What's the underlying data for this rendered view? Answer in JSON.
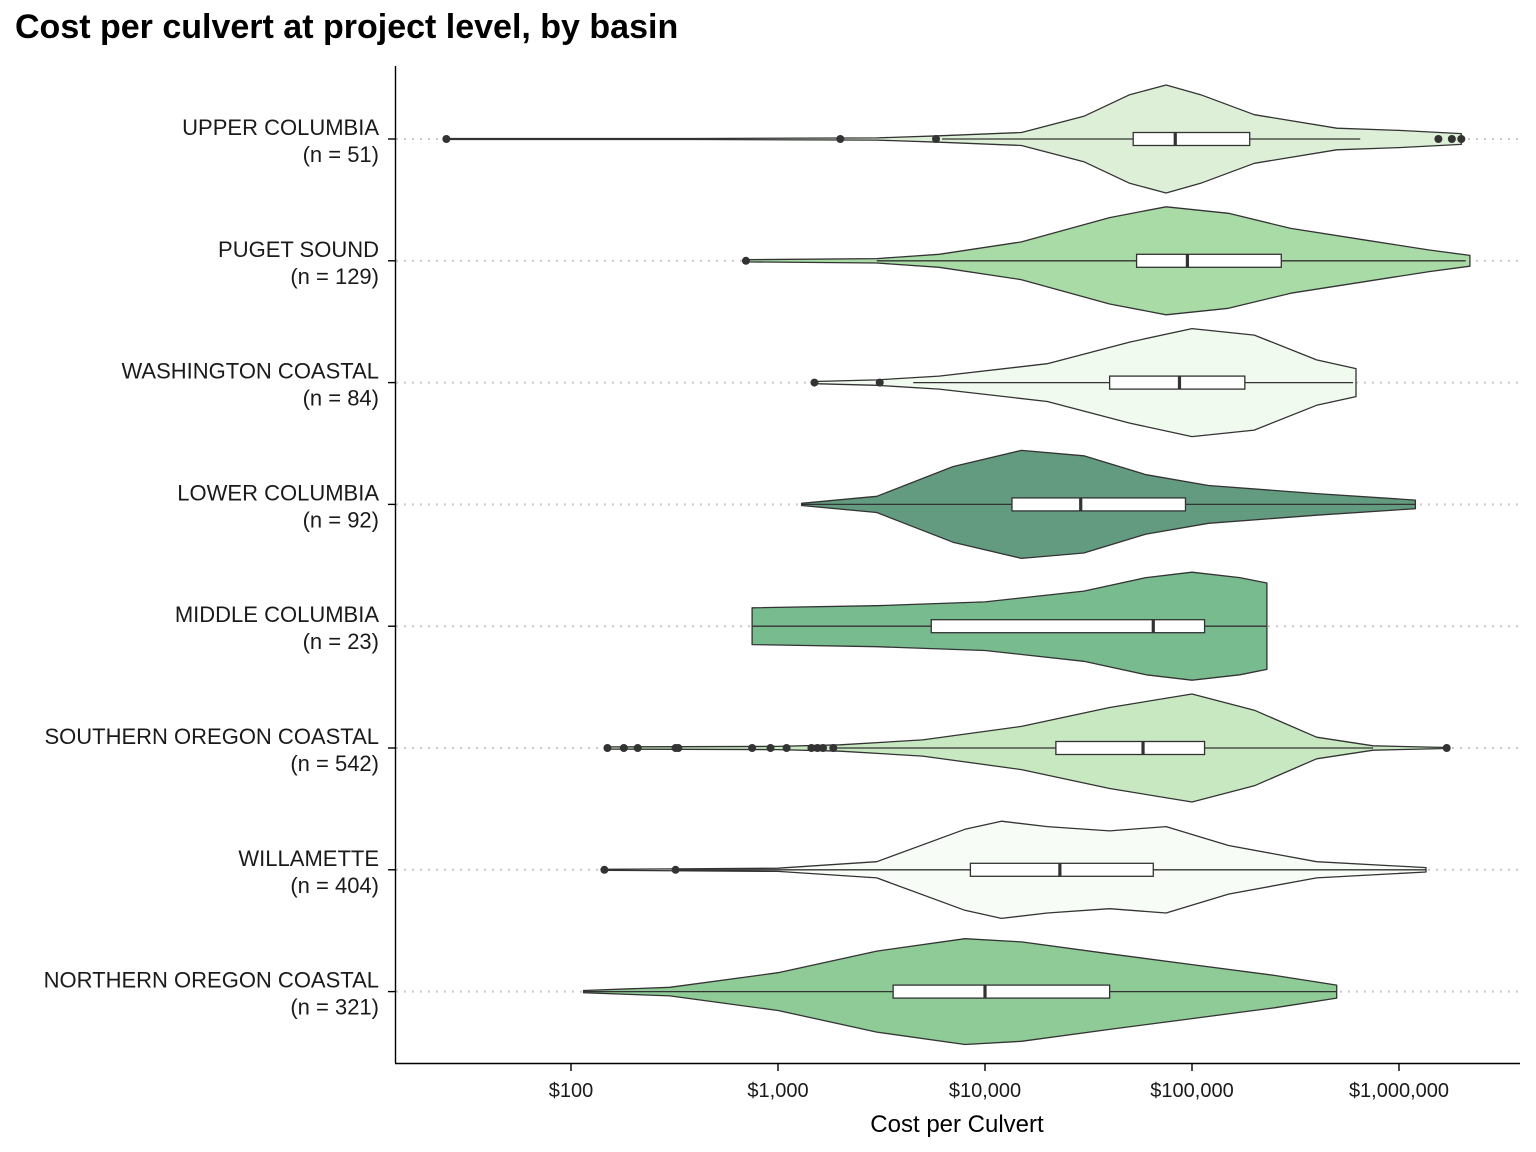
{
  "chart_data": {
    "type": "violin",
    "title": "Cost per culvert at project level, by basin",
    "xlabel": "Cost per Culvert",
    "ylabel": "",
    "x_scale": "log10",
    "xlim": [
      13,
      2800000
    ],
    "x_ticks": [
      100,
      1000,
      10000,
      100000,
      1000000
    ],
    "x_tick_labels": [
      "$100",
      "$1,000",
      "$10,000",
      "$100,000",
      "$1,000,000"
    ],
    "grid": "dotted horizontal lines at each category",
    "legend": "none",
    "series": [
      {
        "name": "UPPER COLUMBIA",
        "label": "(n = 51)",
        "color": "#ddf0d7",
        "box": {
          "q1": 52000,
          "median": 83000,
          "q3": 190000,
          "whisker_low": 6200,
          "whisker_high": 650000
        },
        "outliers": [
          25,
          2000,
          5800,
          1550000,
          1800000,
          2000000
        ],
        "density": [
          [
            25,
            0.01
          ],
          [
            400,
            0.01
          ],
          [
            3000,
            0.02
          ],
          [
            6000,
            0.06
          ],
          [
            15000,
            0.12
          ],
          [
            30000,
            0.42
          ],
          [
            50000,
            0.82
          ],
          [
            75000,
            1.0
          ],
          [
            110000,
            0.82
          ],
          [
            200000,
            0.45
          ],
          [
            500000,
            0.2
          ],
          [
            1000000,
            0.16
          ],
          [
            2000000,
            0.1
          ]
        ]
      },
      {
        "name": "PUGET SOUND",
        "label": "(n = 129)",
        "color": "#a9dba6",
        "box": {
          "q1": 54000,
          "median": 95000,
          "q3": 270000,
          "whisker_low": 3000,
          "whisker_high": 2100000
        },
        "outliers": [
          700
        ],
        "density": [
          [
            700,
            0.02
          ],
          [
            3000,
            0.04
          ],
          [
            6000,
            0.12
          ],
          [
            15000,
            0.35
          ],
          [
            40000,
            0.8
          ],
          [
            75000,
            1.0
          ],
          [
            150000,
            0.88
          ],
          [
            300000,
            0.6
          ],
          [
            700000,
            0.38
          ],
          [
            1400000,
            0.2
          ],
          [
            2200000,
            0.1
          ]
        ]
      },
      {
        "name": "WASHINGTON COASTAL",
        "label": "(n = 84)",
        "color": "#f1faee",
        "box": {
          "q1": 40000,
          "median": 87000,
          "q3": 180000,
          "whisker_low": 4500,
          "whisker_high": 600000
        },
        "outliers": [
          1500,
          3100
        ],
        "density": [
          [
            1500,
            0.02
          ],
          [
            3000,
            0.05
          ],
          [
            6000,
            0.12
          ],
          [
            20000,
            0.35
          ],
          [
            50000,
            0.75
          ],
          [
            100000,
            1.0
          ],
          [
            200000,
            0.88
          ],
          [
            400000,
            0.42
          ],
          [
            620000,
            0.26
          ]
        ]
      },
      {
        "name": "LOWER COLUMBIA",
        "label": "(n = 92)",
        "color": "#639b80",
        "box": {
          "q1": 13500,
          "median": 29000,
          "q3": 93000,
          "whisker_low": 1300,
          "whisker_high": 1200000
        },
        "outliers": [],
        "density": [
          [
            1300,
            0.02
          ],
          [
            3000,
            0.15
          ],
          [
            7000,
            0.7
          ],
          [
            15000,
            1.0
          ],
          [
            30000,
            0.9
          ],
          [
            60000,
            0.55
          ],
          [
            120000,
            0.35
          ],
          [
            400000,
            0.2
          ],
          [
            1200000,
            0.08
          ]
        ]
      },
      {
        "name": "MIDDLE COLUMBIA",
        "label": "(n = 23)",
        "color": "#78bb8f",
        "box": {
          "q1": 5500,
          "median": 65000,
          "q3": 115000,
          "whisker_low": 750,
          "whisker_high": 230000
        },
        "outliers": [],
        "density": [
          [
            750,
            0.34
          ],
          [
            3000,
            0.38
          ],
          [
            10000,
            0.45
          ],
          [
            30000,
            0.65
          ],
          [
            60000,
            0.9
          ],
          [
            100000,
            1.0
          ],
          [
            170000,
            0.9
          ],
          [
            230000,
            0.8
          ]
        ]
      },
      {
        "name": "SOUTHERN OREGON COASTAL",
        "label": "(n = 542)",
        "color": "#c8e8c2",
        "box": {
          "q1": 22000,
          "median": 58000,
          "q3": 115000,
          "whisker_low": 1900,
          "whisker_high": 750000
        },
        "outliers": [
          150,
          180,
          210,
          320,
          330,
          750,
          920,
          1100,
          1450,
          1550,
          1650,
          1850,
          1700000
        ],
        "density": [
          [
            150,
            0.02
          ],
          [
            1000,
            0.03
          ],
          [
            2000,
            0.06
          ],
          [
            5000,
            0.15
          ],
          [
            15000,
            0.4
          ],
          [
            40000,
            0.75
          ],
          [
            100000,
            1.0
          ],
          [
            200000,
            0.7
          ],
          [
            400000,
            0.2
          ],
          [
            750000,
            0.04
          ],
          [
            1700000,
            0.01
          ]
        ]
      },
      {
        "name": "WILLAMETTE",
        "label": "(n = 404)",
        "color": "#f8fcf6",
        "box": {
          "q1": 8500,
          "median": 23000,
          "q3": 65000,
          "whisker_low": 320,
          "whisker_high": 1350000
        },
        "outliers": [
          145,
          320
        ],
        "density": [
          [
            145,
            0.01
          ],
          [
            1000,
            0.03
          ],
          [
            3000,
            0.15
          ],
          [
            8000,
            0.75
          ],
          [
            12000,
            0.9
          ],
          [
            20000,
            0.8
          ],
          [
            40000,
            0.72
          ],
          [
            75000,
            0.8
          ],
          [
            150000,
            0.45
          ],
          [
            400000,
            0.15
          ],
          [
            1350000,
            0.04
          ]
        ]
      },
      {
        "name": "NORTHERN OREGON COASTAL",
        "label": "(n = 321)",
        "color": "#8ecb96",
        "box": {
          "q1": 3600,
          "median": 10000,
          "q3": 40000,
          "whisker_low": 115,
          "whisker_high": 500000
        },
        "outliers": [],
        "density": [
          [
            115,
            0.02
          ],
          [
            300,
            0.08
          ],
          [
            1000,
            0.35
          ],
          [
            3000,
            0.75
          ],
          [
            8000,
            0.98
          ],
          [
            15000,
            0.92
          ],
          [
            40000,
            0.7
          ],
          [
            100000,
            0.5
          ],
          [
            250000,
            0.3
          ],
          [
            500000,
            0.12
          ]
        ]
      }
    ]
  }
}
